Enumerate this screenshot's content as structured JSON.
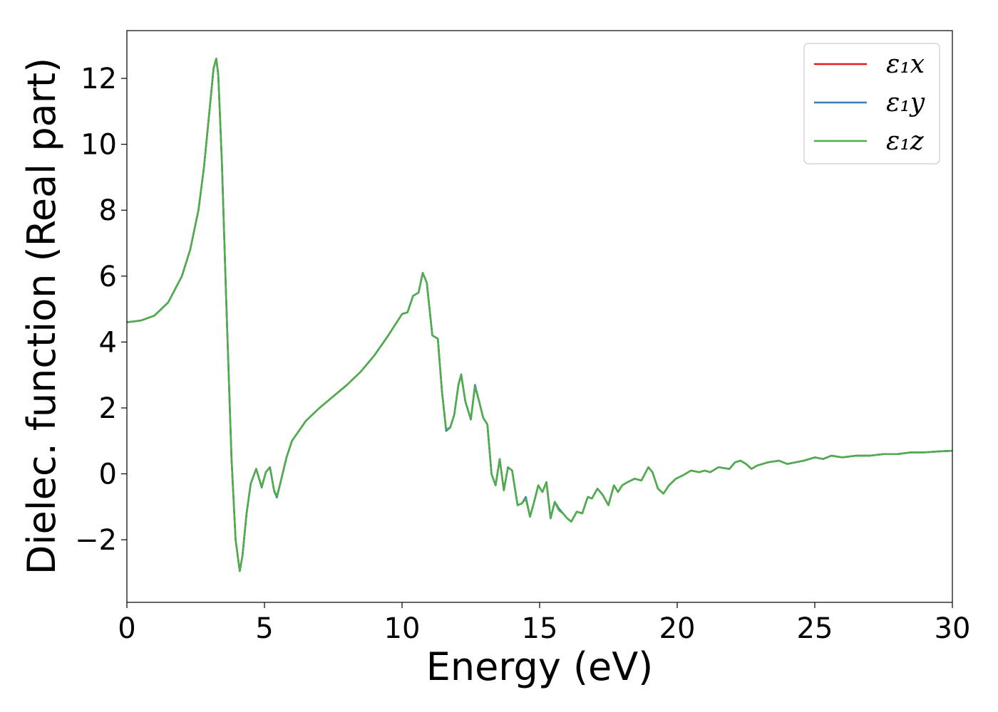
{
  "chart_data": {
    "type": "line",
    "xlabel": "Energy (eV)",
    "ylabel": "Dielec. function (Real part)",
    "xlim": [
      0,
      30
    ],
    "ylim": [
      -3.9,
      13.45
    ],
    "xticks": [
      0,
      5,
      10,
      15,
      20,
      25,
      30
    ],
    "yticks": [
      -2,
      0,
      2,
      4,
      6,
      8,
      10,
      12
    ],
    "xtick_labels": [
      "0",
      "5",
      "10",
      "15",
      "20",
      "25",
      "30"
    ],
    "ytick_labels": [
      "−2",
      "0",
      "2",
      "4",
      "6",
      "8",
      "10",
      "12"
    ],
    "grid": false,
    "legend_position": "top-right",
    "series": [
      {
        "name": "ε₁x",
        "color": "#e41a1c",
        "x": [
          0,
          0.5,
          1.0,
          1.5,
          2.0,
          2.3,
          2.6,
          2.8,
          3.0,
          3.15,
          3.25,
          3.32,
          3.45,
          3.6,
          3.8,
          3.95,
          4.1,
          4.2,
          4.35,
          4.5,
          4.7,
          4.9,
          5.05,
          5.2,
          5.35,
          5.45,
          5.6,
          5.8,
          6.0,
          6.5,
          7.0,
          7.5,
          8.0,
          8.5,
          9.0,
          9.5,
          10.0,
          10.2,
          10.4,
          10.6,
          10.75,
          10.9,
          11.1,
          11.3,
          11.45,
          11.6,
          11.75,
          11.9,
          12.05,
          12.15,
          12.3,
          12.5,
          12.65,
          12.8,
          12.95,
          13.1,
          13.25,
          13.4,
          13.55,
          13.7,
          13.85,
          14.0,
          14.2,
          14.35,
          14.5,
          14.65,
          14.8,
          14.95,
          15.1,
          15.25,
          15.4,
          15.55,
          15.7,
          15.85,
          16.0,
          16.15,
          16.35,
          16.55,
          16.75,
          16.9,
          17.1,
          17.3,
          17.5,
          17.7,
          17.85,
          18.0,
          18.2,
          18.45,
          18.7,
          18.95,
          19.1,
          19.3,
          19.5,
          19.7,
          19.95,
          20.2,
          20.5,
          20.8,
          21.0,
          21.2,
          21.5,
          21.9,
          22.1,
          22.3,
          22.5,
          22.7,
          22.9,
          23.3,
          23.7,
          24.0,
          24.3,
          24.6,
          25.0,
          25.3,
          25.6,
          26.0,
          26.5,
          27.0,
          27.5,
          28.0,
          28.5,
          29.0,
          29.5,
          30.0
        ],
        "y": [
          4.6,
          4.65,
          4.8,
          5.2,
          6.0,
          6.8,
          8.0,
          9.3,
          11.0,
          12.3,
          12.6,
          12.1,
          9.5,
          5.5,
          0.5,
          -2.0,
          -2.95,
          -2.5,
          -1.2,
          -0.3,
          0.15,
          -0.4,
          0.05,
          0.2,
          -0.5,
          -0.7,
          -0.2,
          0.5,
          1.0,
          1.6,
          2.0,
          2.35,
          2.7,
          3.1,
          3.6,
          4.2,
          4.85,
          4.9,
          5.4,
          5.5,
          6.1,
          5.8,
          4.2,
          4.1,
          2.5,
          1.35,
          1.4,
          1.8,
          2.7,
          3.0,
          2.2,
          1.65,
          2.65,
          2.2,
          1.7,
          1.5,
          0.0,
          -0.35,
          0.45,
          -0.5,
          0.2,
          0.1,
          -0.95,
          -0.9,
          -0.75,
          -1.3,
          -0.85,
          -0.35,
          -0.55,
          -0.25,
          -1.35,
          -0.85,
          -1.1,
          -1.2,
          -1.35,
          -1.45,
          -1.15,
          -1.2,
          -0.7,
          -0.75,
          -0.45,
          -0.65,
          -0.95,
          -0.35,
          -0.55,
          -0.35,
          -0.25,
          -0.15,
          -0.2,
          0.2,
          0.05,
          -0.45,
          -0.6,
          -0.35,
          -0.15,
          -0.05,
          0.1,
          0.05,
          0.1,
          0.05,
          0.2,
          0.15,
          0.35,
          0.4,
          0.3,
          0.15,
          0.25,
          0.35,
          0.4,
          0.3,
          0.35,
          0.4,
          0.5,
          0.45,
          0.55,
          0.5,
          0.55,
          0.55,
          0.6,
          0.6,
          0.65,
          0.65,
          0.68,
          0.7
        ]
      },
      {
        "name": "ε₁y",
        "color": "#377eb8",
        "x": [
          0,
          0.5,
          1.0,
          1.5,
          2.0,
          2.3,
          2.6,
          2.8,
          3.0,
          3.15,
          3.25,
          3.32,
          3.45,
          3.6,
          3.8,
          3.95,
          4.1,
          4.2,
          4.35,
          4.5,
          4.7,
          4.9,
          5.05,
          5.2,
          5.35,
          5.45,
          5.6,
          5.8,
          6.0,
          6.5,
          7.0,
          7.5,
          8.0,
          8.5,
          9.0,
          9.5,
          10.0,
          10.2,
          10.4,
          10.6,
          10.75,
          10.9,
          11.1,
          11.3,
          11.45,
          11.6,
          11.75,
          11.9,
          12.05,
          12.15,
          12.3,
          12.5,
          12.65,
          12.8,
          12.95,
          13.1,
          13.25,
          13.4,
          13.55,
          13.7,
          13.85,
          14.0,
          14.2,
          14.35,
          14.5,
          14.65,
          14.8,
          14.95,
          15.1,
          15.25,
          15.4,
          15.55,
          15.7,
          15.85,
          16.0,
          16.15,
          16.35,
          16.55,
          16.75,
          16.9,
          17.1,
          17.3,
          17.5,
          17.7,
          17.85,
          18.0,
          18.2,
          18.45,
          18.7,
          18.95,
          19.1,
          19.3,
          19.5,
          19.7,
          19.95,
          20.2,
          20.5,
          20.8,
          21.0,
          21.2,
          21.5,
          21.9,
          22.1,
          22.3,
          22.5,
          22.7,
          22.9,
          23.3,
          23.7,
          24.0,
          24.3,
          24.6,
          25.0,
          25.3,
          25.6,
          26.0,
          26.5,
          27.0,
          27.5,
          28.0,
          28.5,
          29.0,
          29.5,
          30.0
        ],
        "y": [
          4.6,
          4.65,
          4.8,
          5.2,
          6.0,
          6.8,
          8.0,
          9.3,
          11.0,
          12.3,
          12.6,
          12.1,
          9.5,
          5.5,
          0.5,
          -2.0,
          -2.95,
          -2.5,
          -1.2,
          -0.3,
          0.15,
          -0.42,
          0.05,
          0.2,
          -0.52,
          -0.72,
          -0.2,
          0.5,
          1.0,
          1.6,
          2.0,
          2.35,
          2.7,
          3.1,
          3.6,
          4.2,
          4.85,
          4.9,
          5.4,
          5.5,
          6.1,
          5.8,
          4.2,
          4.1,
          2.5,
          1.3,
          1.4,
          1.8,
          2.7,
          3.02,
          2.2,
          1.65,
          2.7,
          2.2,
          1.7,
          1.5,
          0.0,
          -0.35,
          0.45,
          -0.5,
          0.2,
          0.1,
          -0.95,
          -0.9,
          -0.7,
          -1.3,
          -0.85,
          -0.35,
          -0.55,
          -0.25,
          -1.35,
          -0.85,
          -1.05,
          -1.2,
          -1.35,
          -1.45,
          -1.15,
          -1.2,
          -0.7,
          -0.75,
          -0.45,
          -0.65,
          -0.95,
          -0.35,
          -0.55,
          -0.35,
          -0.25,
          -0.15,
          -0.2,
          0.2,
          0.05,
          -0.45,
          -0.6,
          -0.35,
          -0.15,
          -0.05,
          0.1,
          0.05,
          0.1,
          0.05,
          0.2,
          0.15,
          0.35,
          0.4,
          0.3,
          0.15,
          0.25,
          0.35,
          0.4,
          0.3,
          0.35,
          0.4,
          0.5,
          0.45,
          0.55,
          0.5,
          0.55,
          0.55,
          0.6,
          0.6,
          0.65,
          0.65,
          0.68,
          0.7
        ]
      },
      {
        "name": "ε₁z",
        "color": "#4daf4a",
        "x": [
          0,
          0.5,
          1.0,
          1.5,
          2.0,
          2.3,
          2.6,
          2.8,
          3.0,
          3.15,
          3.25,
          3.32,
          3.45,
          3.6,
          3.8,
          3.95,
          4.1,
          4.2,
          4.35,
          4.5,
          4.7,
          4.9,
          5.05,
          5.2,
          5.35,
          5.45,
          5.6,
          5.8,
          6.0,
          6.5,
          7.0,
          7.5,
          8.0,
          8.5,
          9.0,
          9.5,
          10.0,
          10.2,
          10.4,
          10.6,
          10.75,
          10.9,
          11.1,
          11.3,
          11.45,
          11.6,
          11.75,
          11.9,
          12.05,
          12.15,
          12.3,
          12.5,
          12.65,
          12.8,
          12.95,
          13.1,
          13.25,
          13.4,
          13.55,
          13.7,
          13.85,
          14.0,
          14.2,
          14.35,
          14.5,
          14.65,
          14.8,
          14.95,
          15.1,
          15.25,
          15.4,
          15.55,
          15.7,
          15.85,
          16.0,
          16.15,
          16.35,
          16.55,
          16.75,
          16.9,
          17.1,
          17.3,
          17.5,
          17.7,
          17.85,
          18.0,
          18.2,
          18.45,
          18.7,
          18.95,
          19.1,
          19.3,
          19.5,
          19.7,
          19.95,
          20.2,
          20.5,
          20.8,
          21.0,
          21.2,
          21.5,
          21.9,
          22.1,
          22.3,
          22.5,
          22.7,
          22.9,
          23.3,
          23.7,
          24.0,
          24.3,
          24.6,
          25.0,
          25.3,
          25.6,
          26.0,
          26.5,
          27.0,
          27.5,
          28.0,
          28.5,
          29.0,
          29.5,
          30.0
        ],
        "y": [
          4.6,
          4.65,
          4.8,
          5.2,
          6.0,
          6.8,
          8.0,
          9.3,
          11.0,
          12.3,
          12.6,
          12.1,
          9.5,
          5.5,
          0.5,
          -2.0,
          -2.95,
          -2.5,
          -1.2,
          -0.3,
          0.15,
          -0.4,
          0.05,
          0.2,
          -0.5,
          -0.68,
          -0.2,
          0.5,
          1.0,
          1.6,
          2.0,
          2.35,
          2.7,
          3.1,
          3.6,
          4.2,
          4.85,
          4.9,
          5.4,
          5.5,
          6.1,
          5.8,
          4.2,
          4.1,
          2.5,
          1.35,
          1.4,
          1.8,
          2.7,
          3.0,
          2.2,
          1.65,
          2.65,
          2.2,
          1.7,
          1.5,
          0.0,
          -0.35,
          0.45,
          -0.5,
          0.2,
          0.1,
          -0.95,
          -0.9,
          -0.75,
          -1.3,
          -0.85,
          -0.35,
          -0.55,
          -0.25,
          -1.35,
          -0.85,
          -1.1,
          -1.2,
          -1.35,
          -1.45,
          -1.15,
          -1.2,
          -0.7,
          -0.75,
          -0.45,
          -0.65,
          -0.95,
          -0.35,
          -0.55,
          -0.35,
          -0.25,
          -0.15,
          -0.2,
          0.2,
          0.05,
          -0.45,
          -0.6,
          -0.35,
          -0.15,
          -0.05,
          0.1,
          0.05,
          0.1,
          0.05,
          0.2,
          0.15,
          0.35,
          0.4,
          0.3,
          0.15,
          0.25,
          0.35,
          0.4,
          0.3,
          0.35,
          0.4,
          0.5,
          0.45,
          0.55,
          0.5,
          0.55,
          0.55,
          0.6,
          0.6,
          0.65,
          0.65,
          0.68,
          0.7
        ]
      }
    ]
  }
}
